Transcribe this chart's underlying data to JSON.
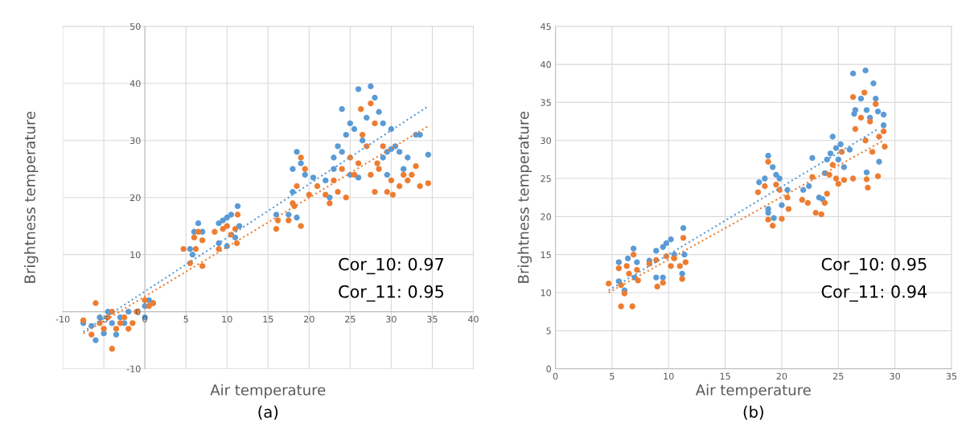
{
  "chart_data": [
    {
      "type": "scatter",
      "xlabel": "Air temperature",
      "ylabel": "Brightness temperature",
      "xlim": [
        -10,
        40
      ],
      "ylim": [
        -10,
        50
      ],
      "xticks": [
        -10,
        -5,
        0,
        5,
        10,
        15,
        20,
        25,
        30,
        35,
        40
      ],
      "yticks": [
        -10,
        0,
        10,
        20,
        30,
        40,
        50
      ],
      "grid": true,
      "marker": "circle",
      "annotations": [
        "Cor_10: 0.97",
        "Cor_11: 0.95",
        "(a)"
      ],
      "series": [
        {
          "color": "#5b9bd5",
          "x": [
            -7.5,
            -6,
            -5.5,
            -5,
            -4.5,
            -4,
            -3.5,
            -3,
            -2.5,
            -2,
            -6.5,
            0,
            0.5,
            1,
            0,
            5.5,
            6,
            6.5,
            7,
            5.8,
            9,
            9.5,
            10,
            10.5,
            11.3,
            11.5,
            9,
            10,
            11,
            16,
            17.5,
            18,
            18,
            18.5,
            19,
            19.5,
            18.5,
            20.5,
            22,
            22.5,
            23,
            23.5,
            24,
            24.5,
            25,
            25.5,
            24,
            26,
            27,
            27.5,
            28,
            28.5,
            29,
            26.5,
            25,
            26,
            23,
            29,
            29.5,
            30,
            30.5,
            31,
            32,
            33,
            33.5,
            34.5,
            30,
            31.5,
            29.5
          ],
          "values": [
            -2,
            -5,
            -1,
            -3.8,
            0,
            -2,
            -4,
            -1,
            -2,
            0,
            -2.5,
            1,
            2,
            1.5,
            -1,
            11,
            14,
            15.5,
            14,
            10,
            15.5,
            16,
            16.5,
            17,
            18.5,
            15,
            12,
            11.5,
            13,
            17,
            17,
            21,
            25,
            28,
            26,
            24,
            16.5,
            23.5,
            23,
            20,
            27,
            29,
            28,
            31,
            33,
            32,
            35.5,
            39,
            34,
            39.5,
            37.5,
            35,
            33,
            30,
            24,
            23.5,
            25,
            27,
            28,
            28.5,
            29,
            28,
            27,
            31,
            31,
            27.5,
            32,
            25,
            24
          ]
        },
        {
          "color": "#ed7d31",
          "x": [
            -7.5,
            -6.5,
            -6,
            -5.5,
            -5,
            -4.5,
            -4,
            -4,
            -3.5,
            -3,
            -2.5,
            -2,
            -1.5,
            -1,
            0,
            0.5,
            1,
            4.7,
            5.5,
            6,
            6.5,
            7,
            7,
            6.2,
            8.5,
            9.5,
            10,
            10.5,
            11,
            11.3,
            11.2,
            9,
            16,
            16.2,
            17.5,
            18,
            18.5,
            19,
            19,
            19.5,
            20,
            18.2,
            21,
            22,
            22.5,
            23,
            23.5,
            24,
            24.5,
            25,
            25.5,
            26,
            26.5,
            26.3,
            27,
            27.5,
            28,
            28.3,
            27.5,
            29,
            28.5,
            29.5,
            30,
            30.2,
            31,
            32,
            33,
            33.5,
            34.5,
            28,
            31.5,
            32.5
          ],
          "values": [
            -1.5,
            -4,
            1.5,
            -2,
            -3,
            -1,
            -6.5,
            0,
            -3,
            -2,
            -1,
            -3,
            -2,
            0,
            2,
            1,
            1.5,
            11,
            8.5,
            13,
            14,
            12.5,
            8,
            11,
            14,
            14.5,
            15,
            13.5,
            14.5,
            17,
            12,
            11,
            14.5,
            16,
            16,
            19,
            22,
            27,
            15,
            25,
            20.5,
            18.5,
            22,
            20.5,
            19,
            23,
            21,
            25,
            20,
            27,
            24,
            26,
            31,
            35.5,
            29,
            36.5,
            33,
            26,
            24,
            29,
            25,
            21,
            23,
            20.5,
            22,
            23,
            25.5,
            22,
            22.5,
            21,
            24,
            24
          ]
        },
        {
          "type": "line",
          "marker": "none",
          "line_style": "dotted",
          "color": "#5b9bd5",
          "x": [
            -7.5,
            34.5
          ],
          "values": [
            -3.5,
            36
          ]
        },
        {
          "type": "line",
          "marker": "none",
          "line_style": "dotted",
          "color": "#ed7d31",
          "x": [
            -7.5,
            34.5
          ],
          "values": [
            -3.8,
            32.5
          ]
        }
      ]
    },
    {
      "type": "scatter",
      "xlabel": "Air temperature",
      "ylabel": "Brightness temperature",
      "xlim": [
        0,
        35
      ],
      "ylim": [
        0,
        45
      ],
      "xticks": [
        0,
        5,
        10,
        15,
        20,
        25,
        30,
        35
      ],
      "yticks": [
        0,
        5,
        10,
        15,
        20,
        25,
        30,
        35,
        40,
        45
      ],
      "grid": true,
      "marker": "circle",
      "annotations": [
        "Cor_10: 0.95",
        "Cor_11: 0.94",
        "(b)"
      ],
      "series": [
        {
          "color": "#5b9bd5",
          "x": [
            5.6,
            5.6,
            6.1,
            6.4,
            6.9,
            7.2,
            7,
            8.3,
            8.9,
            9.5,
            9.8,
            10.2,
            10.5,
            11.3,
            11.4,
            11.2,
            8.9,
            9.5,
            18,
            18.5,
            18.8,
            19.2,
            19.5,
            19.8,
            18.8,
            18.8,
            19.3,
            20,
            20.5,
            21.9,
            22.4,
            22.7,
            23.3,
            23.6,
            23.8,
            24,
            24.3,
            24.5,
            24.8,
            25.2,
            25,
            25.5,
            26,
            26.3,
            26.4,
            26.5,
            27,
            27.4,
            27.5,
            27.8,
            28.1,
            28.3,
            28.5,
            29,
            28.6,
            27.5,
            29
          ],
          "values": [
            14,
            11.5,
            10.3,
            14.5,
            15.8,
            14,
            12,
            14.2,
            15.5,
            16,
            16.5,
            17,
            15,
            18.5,
            15,
            12.5,
            12,
            12,
            24.5,
            25,
            28,
            26.5,
            25.5,
            25,
            21,
            20.5,
            19.8,
            21.5,
            23.5,
            23.5,
            24,
            27.7,
            22.5,
            22.3,
            25.7,
            27.5,
            28.3,
            30.5,
            29,
            29.5,
            27.5,
            26.5,
            28.8,
            38.8,
            33.5,
            34,
            35.5,
            39.2,
            34,
            33,
            37.5,
            35.5,
            33.8,
            33.4,
            27.2,
            25.8,
            32
          ]
        },
        {
          "color": "#ed7d31",
          "x": [
            4.7,
            5.6,
            5.8,
            5.8,
            6.1,
            6.3,
            6.5,
            6.8,
            6.9,
            7.2,
            7.3,
            8.3,
            8.9,
            9,
            9.5,
            9.8,
            10.2,
            10.5,
            11,
            11.3,
            11.5,
            11.2,
            17.9,
            18.5,
            18.8,
            18.8,
            19.2,
            19.5,
            19.8,
            20,
            20.5,
            20.6,
            21.8,
            22.3,
            22.7,
            23,
            23.5,
            23.8,
            24,
            24.2,
            24.5,
            24.8,
            25,
            25.3,
            25.5,
            26.3,
            26.3,
            26.5,
            27,
            27.3,
            27.4,
            27.5,
            27.6,
            27.8,
            28,
            28.3,
            28.5,
            28.6,
            29.1,
            29
          ],
          "values": [
            11.2,
            13.2,
            11,
            8.2,
            9.9,
            13.5,
            12.5,
            8.2,
            15,
            13,
            11.6,
            13.8,
            14.3,
            10.8,
            11.3,
            14.8,
            13.5,
            14.5,
            13.5,
            17.2,
            14,
            11.8,
            23.2,
            24,
            27.2,
            19.6,
            18.8,
            24.2,
            23.5,
            19.7,
            22.5,
            21,
            22.2,
            21.8,
            25.2,
            20.5,
            20.3,
            21.8,
            23,
            25.5,
            26.8,
            25,
            24.3,
            28.5,
            24.8,
            25,
            35.7,
            31.5,
            33,
            36.3,
            30,
            24.9,
            23.8,
            32.5,
            28.5,
            34.8,
            25.3,
            30.5,
            29.2,
            31.2
          ]
        },
        {
          "type": "line",
          "marker": "none",
          "line_style": "dotted",
          "color": "#5b9bd5",
          "x": [
            4.7,
            28.5
          ],
          "values": [
            10.3,
            31.5
          ]
        },
        {
          "type": "line",
          "marker": "none",
          "line_style": "dotted",
          "color": "#ed7d31",
          "x": [
            4.7,
            29
          ],
          "values": [
            10,
            30
          ]
        }
      ]
    }
  ]
}
